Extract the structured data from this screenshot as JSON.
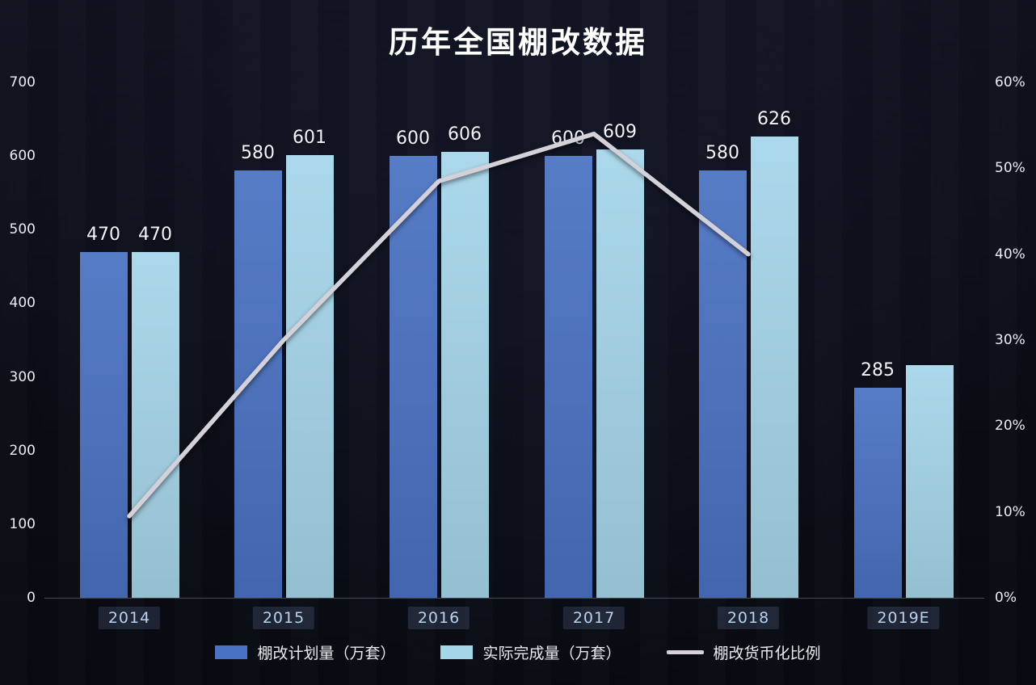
{
  "title": "历年全国棚改数据",
  "chart_data": {
    "type": "bar+line",
    "categories": [
      "2014",
      "2015",
      "2016",
      "2017",
      "2018",
      "2019E"
    ],
    "series": [
      {
        "key": "planned",
        "name": "棚改计划量（万套）",
        "type": "bar",
        "axis": "left",
        "color": "#4a72c2",
        "values": [
          470,
          580,
          600,
          600,
          580,
          285
        ],
        "labels": [
          "470",
          "580",
          "600",
          "600",
          "580",
          "285"
        ]
      },
      {
        "key": "actual",
        "name": "实际完成量（万套）",
        "type": "bar",
        "axis": "left",
        "color": "#a5d5e9",
        "values": [
          470,
          601,
          606,
          609,
          626,
          316
        ],
        "labels": [
          "470",
          "601",
          "606",
          "609",
          "626",
          ""
        ]
      },
      {
        "key": "monetization",
        "name": "棚改货币化比例",
        "type": "line",
        "axis": "right",
        "color": "#d5d1d9",
        "values_pct": [
          9.5,
          30,
          48.5,
          54,
          40
        ]
      }
    ],
    "left_axis": {
      "min": 0,
      "max": 700,
      "step": 100,
      "ticks": [
        "700",
        "600",
        "500",
        "400",
        "300",
        "200",
        "100",
        "0"
      ]
    },
    "right_axis": {
      "min": 0,
      "max": 60,
      "step": 10,
      "ticks": [
        "60%",
        "50%",
        "40%",
        "30%",
        "20%",
        "10%",
        "0%"
      ]
    },
    "legend_position": "bottom",
    "grid": false,
    "background_color": "#0c0e17"
  }
}
